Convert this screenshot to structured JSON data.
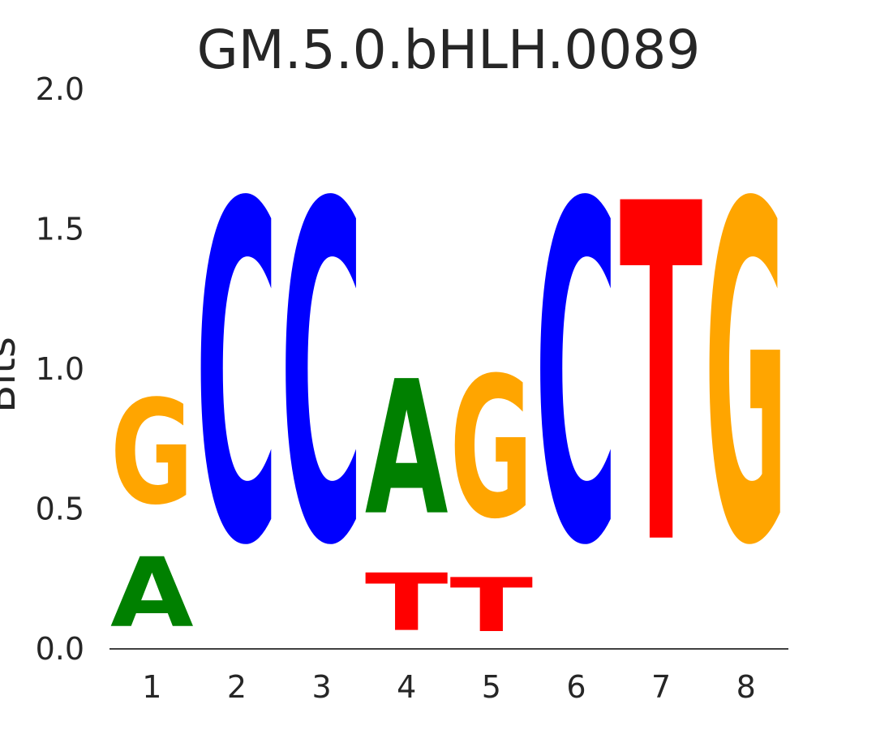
{
  "chart_data": {
    "type": "sequence-logo",
    "title": "GM.5.0.bHLH.0089",
    "xlabel": "",
    "ylabel": "Bits",
    "ylim": [
      0,
      2
    ],
    "yticks": [
      "0.0",
      "0.5",
      "1.0",
      "1.5",
      "2.0"
    ],
    "grid": false,
    "legend": "none",
    "positions": [
      {
        "label": "1",
        "stack": [
          {
            "letter": "T",
            "bits": 0.0
          },
          {
            "letter": "A",
            "bits": 0.4
          },
          {
            "letter": "G",
            "bits": 0.6
          }
        ]
      },
      {
        "label": "2",
        "stack": [
          {
            "letter": "T",
            "bits": 0.0
          },
          {
            "letter": "C",
            "bits": 1.94
          }
        ]
      },
      {
        "label": "3",
        "stack": [
          {
            "letter": "T",
            "bits": 0.0
          },
          {
            "letter": "C",
            "bits": 1.94
          }
        ]
      },
      {
        "label": "4",
        "stack": [
          {
            "letter": "T",
            "bits": 0.33
          },
          {
            "letter": "A",
            "bits": 0.77
          }
        ]
      },
      {
        "label": "5",
        "stack": [
          {
            "letter": "T",
            "bits": 0.31
          },
          {
            "letter": "G",
            "bits": 0.81
          }
        ]
      },
      {
        "label": "6",
        "stack": [
          {
            "letter": "T",
            "bits": 0.0
          },
          {
            "letter": "C",
            "bits": 1.94
          }
        ]
      },
      {
        "label": "7",
        "stack": [
          {
            "letter": "T",
            "bits": 1.94
          }
        ]
      },
      {
        "label": "8",
        "stack": [
          {
            "letter": "T",
            "bits": 0.0
          },
          {
            "letter": "G",
            "bits": 1.94
          }
        ]
      }
    ],
    "colors": {
      "A": "#008000",
      "C": "#0000ff",
      "G": "#ffa500",
      "T": "#ff0000"
    }
  }
}
